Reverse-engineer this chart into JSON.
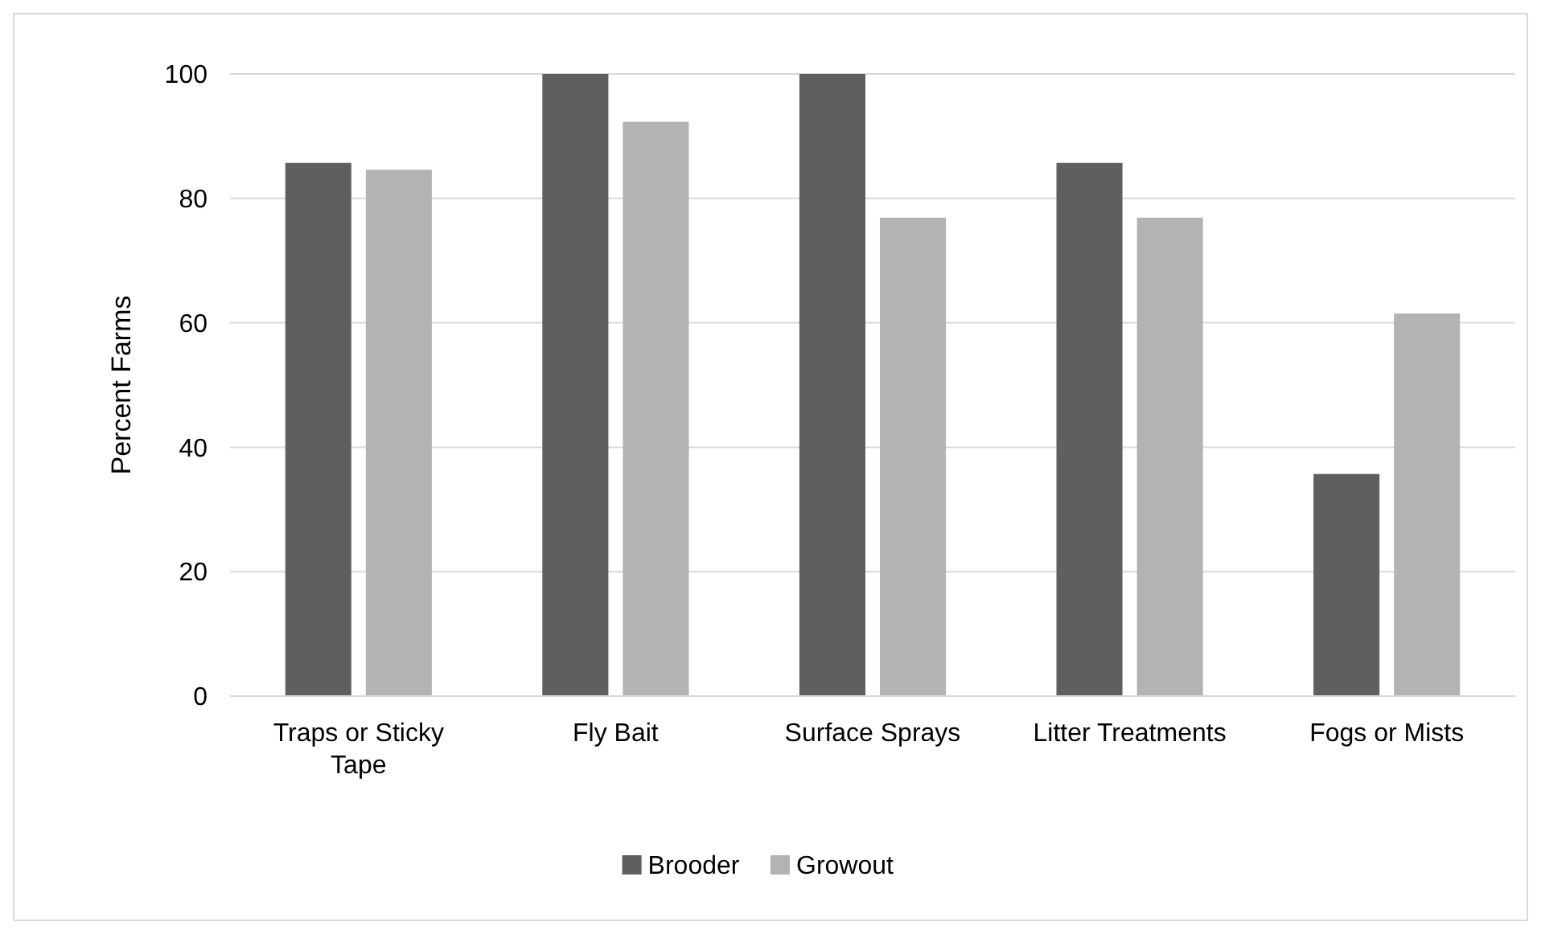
{
  "chart_data": {
    "type": "bar",
    "ylabel": "Percent Farms",
    "categories": [
      "Traps or Sticky Tape",
      "Fly Bait",
      "Surface Sprays",
      "Litter Treatments",
      "Fogs or Mists"
    ],
    "series": [
      {
        "name": "Brooder",
        "color": "#5f5f5f",
        "values": [
          85.7,
          100,
          100,
          85.7,
          35.7
        ]
      },
      {
        "name": "Growout",
        "color": "#b3b3b3",
        "values": [
          84.6,
          92.3,
          76.9,
          76.9,
          61.5
        ]
      }
    ],
    "ylim": [
      0,
      100
    ],
    "yticks": [
      0,
      20,
      40,
      60,
      80,
      100
    ],
    "grid": "y",
    "legend": "bottom"
  }
}
